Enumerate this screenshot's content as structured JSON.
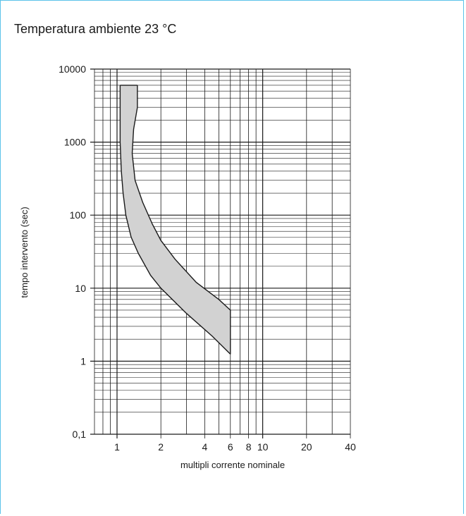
{
  "title": "Temperatura ambiente 23 °C",
  "chart_data": {
    "type": "area",
    "title": "",
    "xlabel": "multipli corrente nominale",
    "ylabel": "tempo intervento (sec)",
    "x_scale": "log",
    "y_scale": "log",
    "xlim": [
      0.7,
      40
    ],
    "ylim": [
      0.1,
      10000
    ],
    "grid": true,
    "x_ticks": [
      {
        "value": 1,
        "label": "1"
      },
      {
        "value": 2,
        "label": "2"
      },
      {
        "value": 4,
        "label": "4"
      },
      {
        "value": 6,
        "label": "6"
      },
      {
        "value": 8,
        "label": "8"
      },
      {
        "value": 10,
        "label": "10"
      },
      {
        "value": 20,
        "label": "20"
      },
      {
        "value": 40,
        "label": "40"
      }
    ],
    "y_ticks": [
      {
        "value": 10000,
        "label": "10000"
      },
      {
        "value": 1000,
        "label": "1000"
      },
      {
        "value": 100,
        "label": "100"
      },
      {
        "value": 10,
        "label": "10"
      },
      {
        "value": 1,
        "label": "1"
      },
      {
        "value": 0.1,
        "label": "0,1"
      }
    ],
    "series": [
      {
        "name": "",
        "x": [
          1.38,
          1.38,
          1.3,
          1.27,
          1.33,
          1.5,
          1.75,
          2.0,
          2.5,
          3.5,
          5.0,
          6.0
        ],
        "y": [
          6000,
          3000,
          1500,
          700,
          300,
          150,
          75,
          45,
          25,
          12,
          7,
          5
        ]
      },
      {
        "name": "",
        "x": [
          1.05,
          1.05,
          1.05,
          1.07,
          1.1,
          1.15,
          1.25,
          1.4,
          1.7,
          2.0,
          3.0,
          4.5,
          6.0
        ],
        "y": [
          6000,
          3000,
          1000,
          400,
          200,
          100,
          50,
          30,
          15,
          10,
          4.5,
          2.2,
          1.25
        ]
      }
    ],
    "band_fill": "#d2d2d2",
    "line_color": "#1a1a1a",
    "grid_color": "#1a1a1a"
  },
  "colors": {
    "frame_border": "#5bc3ea"
  }
}
